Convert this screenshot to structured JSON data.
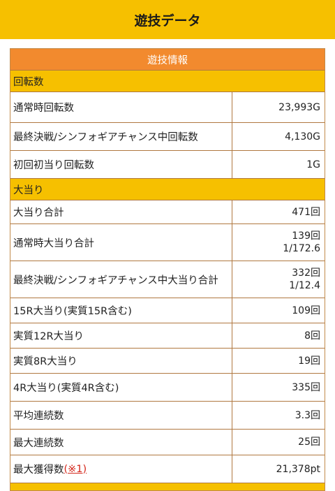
{
  "header": {
    "title": "遊技データ"
  },
  "table": {
    "banner": "遊技情報",
    "sections": {
      "spins": "回転数",
      "jackpot": "大当り"
    },
    "spin_rows": [
      {
        "label": "通常時回転数",
        "value": "23,993G"
      },
      {
        "label": "最終決戦/シンフォギアチャンス中回転数",
        "value": "4,130G"
      },
      {
        "label": "初回初当り回転数",
        "value": "1G"
      }
    ],
    "jackpot_rows": [
      {
        "label": "大当り合計",
        "value": "471回"
      },
      {
        "label": "通常時大当り合計",
        "value": "139回",
        "sub": "1/172.6"
      },
      {
        "label": "最終決戦/シンフォギアチャンス中大当り合計",
        "value": "332回",
        "sub": "1/12.4"
      },
      {
        "label": "15R大当り(実質15R含む)",
        "value": "109回"
      },
      {
        "label": "実質12R大当り",
        "value": "8回"
      },
      {
        "label": "実質8R大当り",
        "value": "19回"
      },
      {
        "label": "4R大当り(実質4R含む)",
        "value": "335回"
      },
      {
        "label": "平均連続数",
        "value": "3.3回"
      },
      {
        "label": "最大連続数",
        "value": "25回"
      }
    ],
    "max_gain": {
      "label": "最大獲得数",
      "note": "(※1)",
      "value": "21,378pt"
    }
  }
}
